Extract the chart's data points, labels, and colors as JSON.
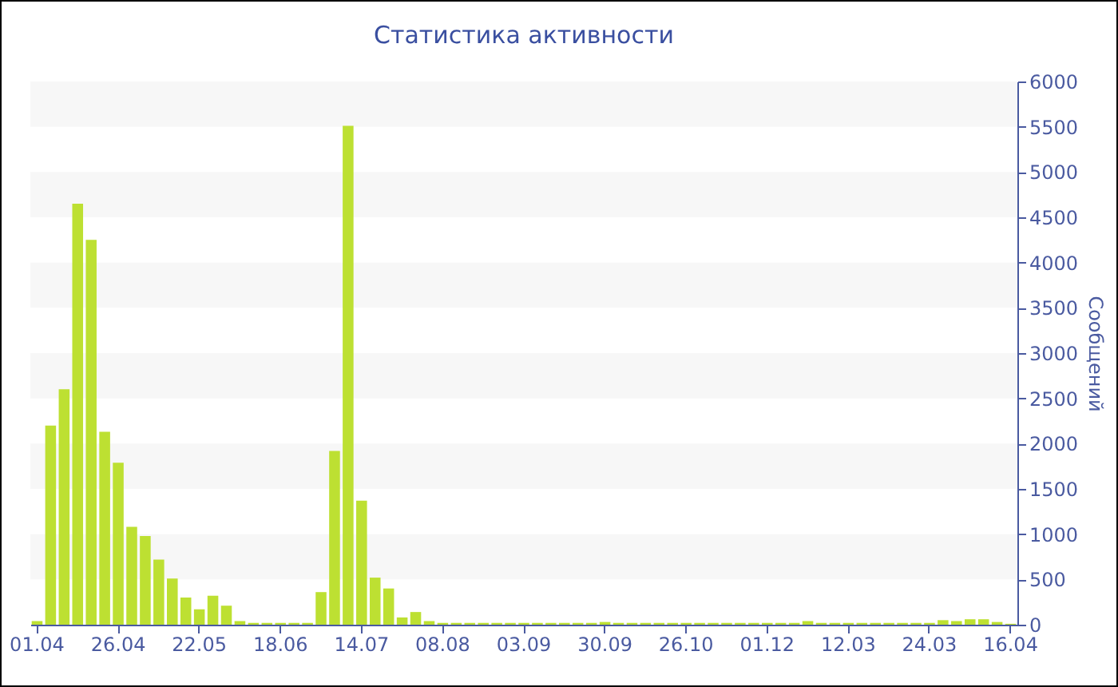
{
  "chart_data": {
    "type": "bar",
    "title": "Статистика активности",
    "ylabel": "Сообщений",
    "categories": [
      "01.04",
      null,
      null,
      null,
      null,
      null,
      "26.04",
      null,
      null,
      null,
      null,
      null,
      "22.05",
      null,
      null,
      null,
      null,
      null,
      "18.06",
      null,
      null,
      null,
      null,
      null,
      "14.07",
      null,
      null,
      null,
      null,
      null,
      "08.08",
      null,
      null,
      null,
      null,
      null,
      "03.09",
      null,
      null,
      null,
      null,
      null,
      "30.09",
      null,
      null,
      null,
      null,
      null,
      "26.10",
      null,
      null,
      null,
      null,
      null,
      "01.12",
      null,
      null,
      null,
      null,
      null,
      "12.03",
      null,
      null,
      null,
      null,
      null,
      "24.03",
      null,
      null,
      null,
      null,
      null,
      "16.04"
    ],
    "values": [
      40,
      2200,
      2600,
      4650,
      4250,
      2130,
      1790,
      1080,
      980,
      720,
      510,
      300,
      170,
      320,
      210,
      40,
      20,
      20,
      20,
      20,
      20,
      360,
      1920,
      5510,
      1370,
      520,
      400,
      80,
      140,
      40,
      20,
      20,
      20,
      20,
      20,
      20,
      20,
      20,
      20,
      20,
      20,
      20,
      30,
      20,
      20,
      20,
      20,
      20,
      20,
      20,
      20,
      20,
      20,
      20,
      20,
      20,
      20,
      40,
      20,
      20,
      20,
      20,
      20,
      20,
      20,
      20,
      20,
      50,
      40,
      60,
      60,
      30,
      10
    ],
    "color": "#bde032",
    "ylim": [
      0,
      6000
    ],
    "yticks": [
      0,
      500,
      1000,
      1500,
      2000,
      2500,
      3000,
      3500,
      4000,
      4500,
      5000,
      5500,
      6000
    ],
    "bands": [
      {
        "axis": "y",
        "from": 500,
        "to": 1000,
        "color": "#f7f7f7"
      },
      {
        "axis": "y",
        "from": 1500,
        "to": 2000,
        "color": "#f7f7f7"
      },
      {
        "axis": "y",
        "from": 2500,
        "to": 3000,
        "color": "#f7f7f7"
      },
      {
        "axis": "y",
        "from": 3500,
        "to": 4000,
        "color": "#f7f7f7"
      },
      {
        "axis": "y",
        "from": 4500,
        "to": 5000,
        "color": "#f7f7f7"
      },
      {
        "axis": "y",
        "from": 5500,
        "to": 6000,
        "color": "#f7f7f7"
      }
    ]
  }
}
